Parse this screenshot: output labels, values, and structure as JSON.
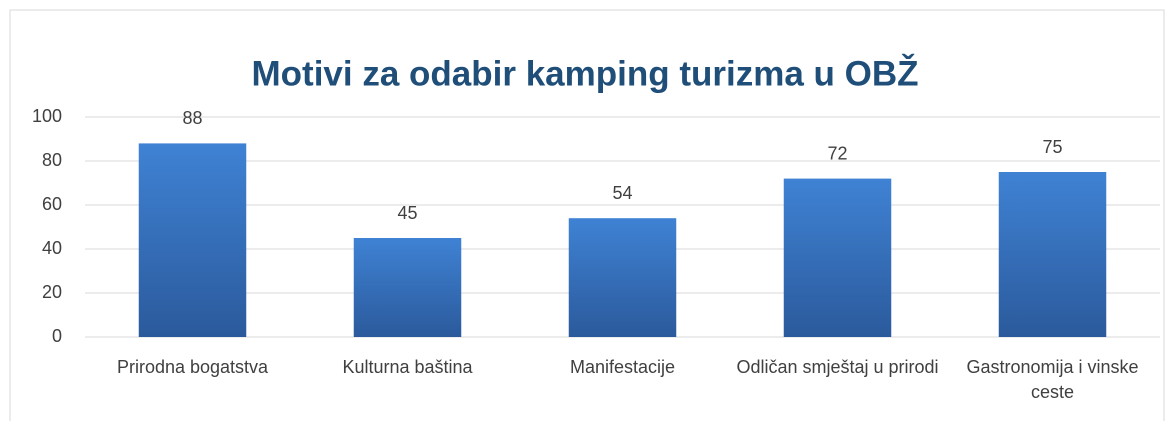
{
  "chart_data": {
    "type": "bar",
    "title": "Motivi za odabir kamping turizma u OBŽ",
    "categories": [
      "Prirodna bogatstva",
      "Kulturna baština",
      "Manifestacije",
      "Odličan smještaj u prirodi",
      "Gastronomija i vinske ceste"
    ],
    "values": [
      88,
      45,
      54,
      72,
      75
    ],
    "color": "#3a78c6",
    "ylim": [
      0,
      100
    ],
    "yticks": [
      0,
      20,
      40,
      60,
      80,
      100
    ],
    "grid": true
  }
}
